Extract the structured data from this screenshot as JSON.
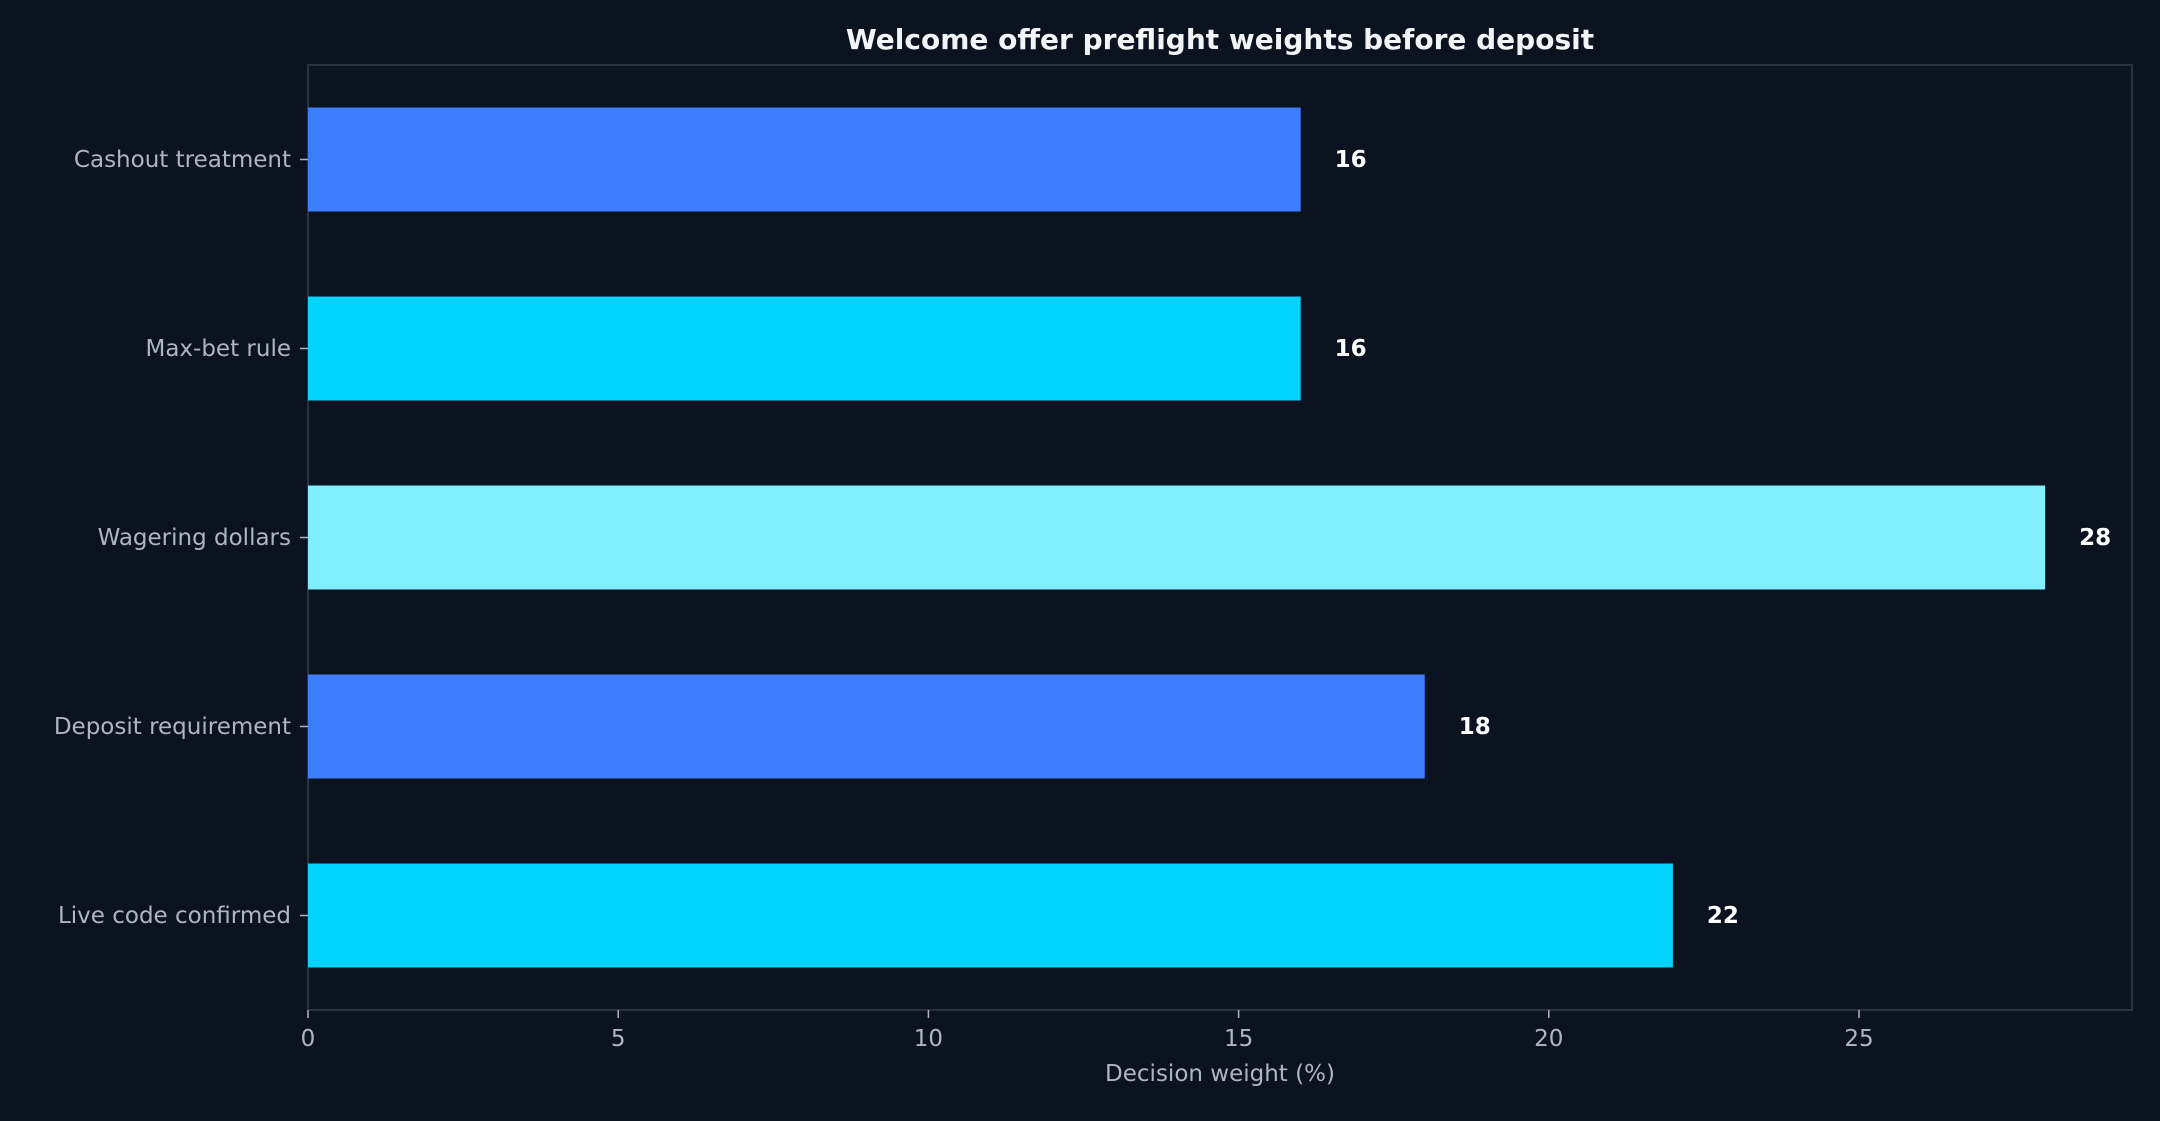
{
  "chart_data": {
    "type": "bar",
    "orientation": "horizontal",
    "title": "Welcome offer preflight weights before deposit",
    "xlabel": "Decision weight (%)",
    "ylabel": "",
    "categories": [
      "Cashout treatment",
      "Max-bet rule",
      "Wagering dollars",
      "Deposit requirement",
      "Live code confirmed"
    ],
    "values": [
      16,
      16,
      28,
      18,
      22
    ],
    "data_labels": [
      "16",
      "16",
      "28",
      "18",
      "22"
    ],
    "bar_colors": [
      "#3d7eff",
      "#00d4ff",
      "#7fefff",
      "#3d7eff",
      "#00d4ff"
    ],
    "xlim": [
      0,
      29.4
    ],
    "xticks": [
      0,
      5,
      10,
      15,
      20,
      25
    ],
    "xtick_labels": [
      "0",
      "5",
      "10",
      "15",
      "20",
      "25"
    ],
    "grid": false,
    "legend": "none",
    "colors": {
      "background": "#0b1320",
      "frame": "#323c4c",
      "tick_text": "#aeb6c4",
      "title_text": "#f2f4f8",
      "value_text": "#ffffff"
    }
  }
}
